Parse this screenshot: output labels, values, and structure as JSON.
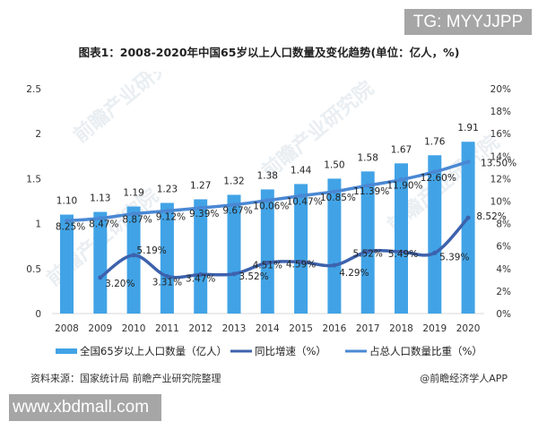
{
  "badges": {
    "top_right": "TG: MYYJJPP",
    "bottom_left": "www.xbdmall.com"
  },
  "title": "图表1：2008-2020年中国65岁以上人口数量及变化趋势(单位：亿人，%)",
  "footer": {
    "source": "资料来源：国家统计局 前瞻产业研究院整理",
    "credit": "@前瞻经济学人APP"
  },
  "watermark": "前瞻产业研究院",
  "colors": {
    "bar": "#41a3e6",
    "growth_line": "#3d62ad",
    "share_line": "#4a88d4"
  },
  "chart_data": {
    "type": "bar",
    "title": "图表1：2008-2020年中国65岁以上人口数量及变化趋势(单位：亿人，%)",
    "xlabel": "",
    "ylabel": "亿人",
    "y2label": "%",
    "categories": [
      "2008",
      "2009",
      "2010",
      "2011",
      "2012",
      "2013",
      "2014",
      "2015",
      "2016",
      "2017",
      "2018",
      "2019",
      "2020"
    ],
    "ylim": [
      0,
      2.5
    ],
    "yticks": [
      "0",
      "0.5",
      "1",
      "1.5",
      "2",
      "2.5"
    ],
    "y2lim": [
      0,
      20
    ],
    "y2ticks": [
      "0%",
      "2%",
      "4%",
      "6%",
      "8%",
      "10%",
      "12%",
      "14%",
      "16%",
      "18%",
      "20%"
    ],
    "grid": false,
    "legend_position": "bottom",
    "series": [
      {
        "name": "全国65岁以上人口数量（亿人）",
        "type": "bar",
        "axis": "left",
        "values": [
          1.1,
          1.13,
          1.19,
          1.23,
          1.27,
          1.32,
          1.38,
          1.44,
          1.5,
          1.58,
          1.67,
          1.76,
          1.91
        ],
        "labels": [
          "1.10",
          "1.13",
          "1.19",
          "1.23",
          "1.27",
          "1.32",
          "1.38",
          "1.44",
          "1.50",
          "1.58",
          "1.67",
          "1.76",
          "1.91"
        ]
      },
      {
        "name": "同比增速（%）",
        "type": "line",
        "axis": "right",
        "values": [
          null,
          3.2,
          5.19,
          3.31,
          3.47,
          3.52,
          4.51,
          4.59,
          4.29,
          5.52,
          5.49,
          5.39,
          8.52
        ],
        "labels": [
          "",
          "3.20%",
          "5.19%",
          "3.31%",
          "3.47%",
          "3.52%",
          "4.51%",
          "4.59%",
          "4.29%",
          "5.52%",
          "5.49%",
          "5.39%",
          "8.52%"
        ]
      },
      {
        "name": "占总人口数量比重（%）",
        "type": "line",
        "axis": "right",
        "values": [
          8.25,
          8.47,
          8.87,
          9.12,
          9.39,
          9.67,
          10.06,
          10.47,
          10.85,
          11.39,
          11.9,
          12.6,
          13.5
        ],
        "labels": [
          "8.25%",
          "8.47%",
          "8.87%",
          "9.12%",
          "9.39%",
          "9.67%",
          "10.06%",
          "10.47%",
          "10.85%",
          "11.39%",
          "11.90%",
          "12.60%",
          "13.50%"
        ]
      }
    ]
  }
}
